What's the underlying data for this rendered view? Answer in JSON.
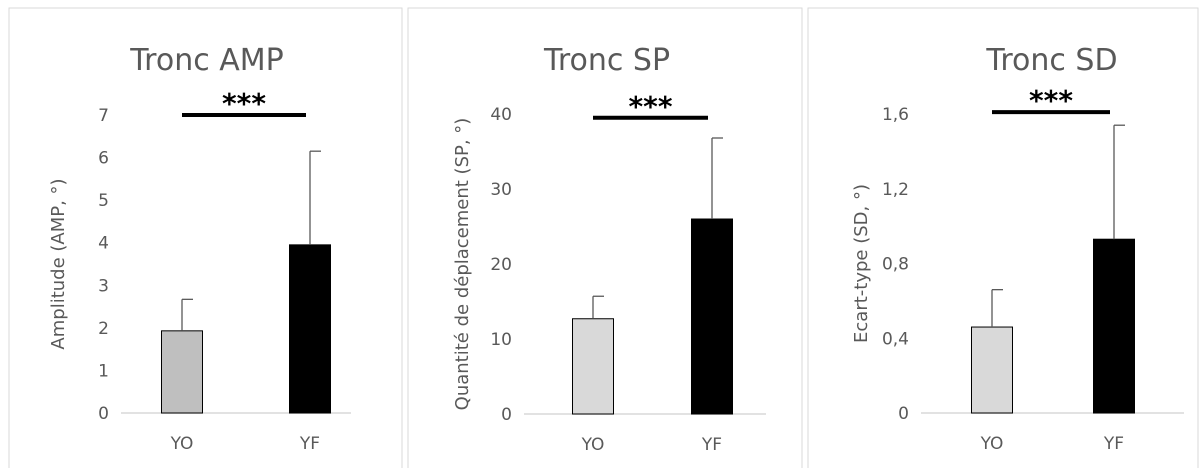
{
  "chart_data": [
    {
      "type": "bar",
      "title": "Tronc AMP",
      "ylabel": "Amplitude (AMP, °)",
      "categories": [
        "YO",
        "YF"
      ],
      "values": [
        1.93,
        3.95
      ],
      "error_plus": [
        0.74,
        2.2
      ],
      "ylim": [
        0,
        7
      ],
      "yticks": [
        0,
        1,
        2,
        3,
        4,
        5,
        6,
        7
      ],
      "ytick_labels": [
        "0",
        "1",
        "2",
        "3",
        "4",
        "5",
        "6",
        "7"
      ],
      "bar_colors": [
        "#bfbfbf",
        "#000000"
      ],
      "significance": {
        "label": "***",
        "between": [
          "YO",
          "YF"
        ],
        "y": 7.0
      },
      "grid": false,
      "legend": "none"
    },
    {
      "type": "bar",
      "title": "Tronc SP",
      "ylabel": "Quantité de déplacement (SP, °)",
      "categories": [
        "YO",
        "YF"
      ],
      "values": [
        12.7,
        26.0
      ],
      "error_plus": [
        3.0,
        10.8
      ],
      "ylim": [
        0,
        40
      ],
      "yticks": [
        0,
        10,
        20,
        30,
        40
      ],
      "ytick_labels": [
        "0",
        "10",
        "20",
        "30",
        "40"
      ],
      "bar_colors": [
        "#d9d9d9",
        "#000000"
      ],
      "significance": {
        "label": "***",
        "between": [
          "YO",
          "YF"
        ],
        "y": 39.5
      },
      "grid": false,
      "legend": "none"
    },
    {
      "type": "bar",
      "title": "Tronc SD",
      "ylabel": "Ecart-type (SD, °)",
      "categories": [
        "YO",
        "YF"
      ],
      "values": [
        0.46,
        0.93
      ],
      "error_plus": [
        0.2,
        0.61
      ],
      "ylim": [
        0,
        1.6
      ],
      "yticks": [
        0,
        0.4,
        0.8,
        1.2,
        1.6
      ],
      "ytick_labels": [
        "0",
        "0,4",
        "0,8",
        "1,2",
        "1,6"
      ],
      "bar_colors": [
        "#d9d9d9",
        "#000000"
      ],
      "significance": {
        "label": "***",
        "between": [
          "YO",
          "YF"
        ],
        "y": 1.61
      },
      "grid": false,
      "legend": "none"
    }
  ]
}
